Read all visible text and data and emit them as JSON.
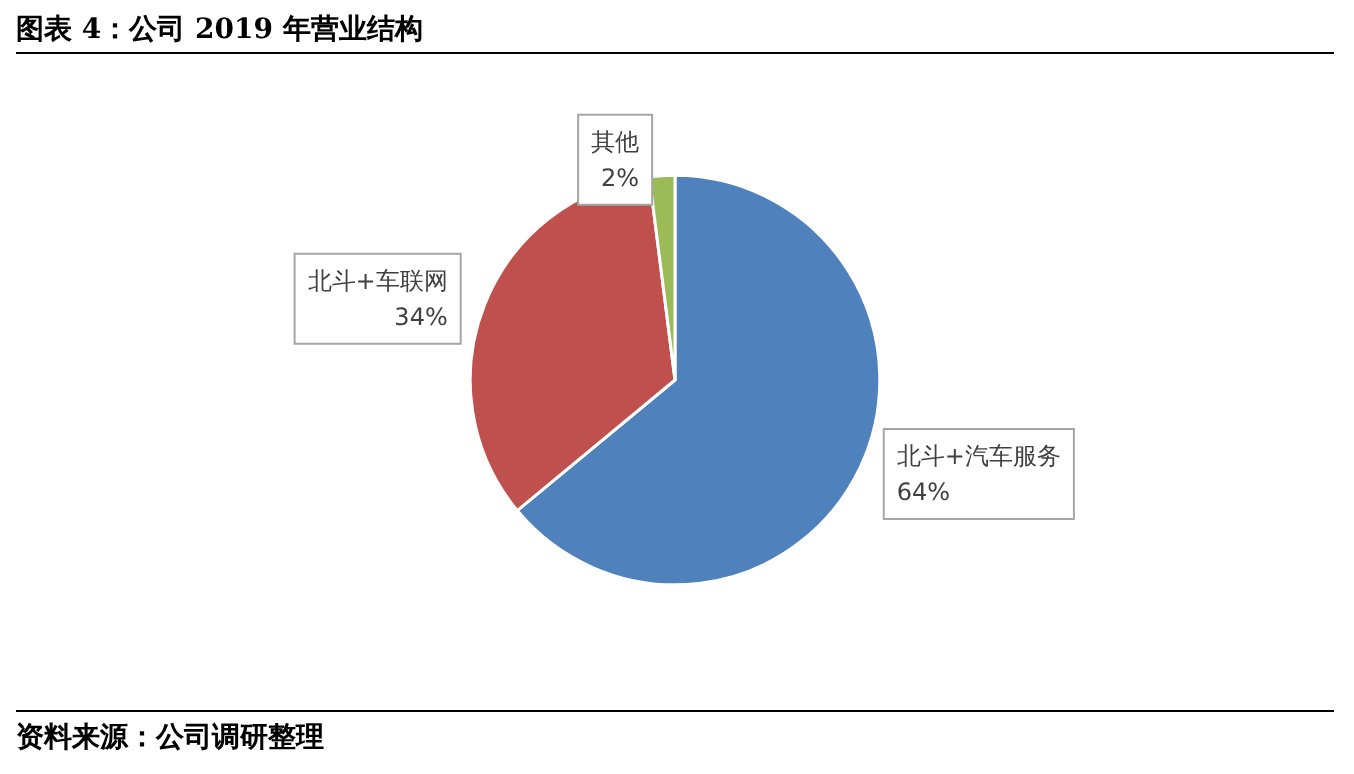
{
  "chart_data": {
    "type": "pie",
    "title": "图表 4：公司 2019 年营业结构",
    "categories": [
      "北斗+汽车服务",
      "北斗+车联网",
      "其他"
    ],
    "values": [
      64,
      34,
      2
    ],
    "value_labels": [
      "64%",
      "34%",
      "2%"
    ],
    "colors": [
      "#4f81bd",
      "#c0504d",
      "#9bbb59"
    ],
    "annotations": [
      "资料来源：公司调研整理"
    ]
  }
}
